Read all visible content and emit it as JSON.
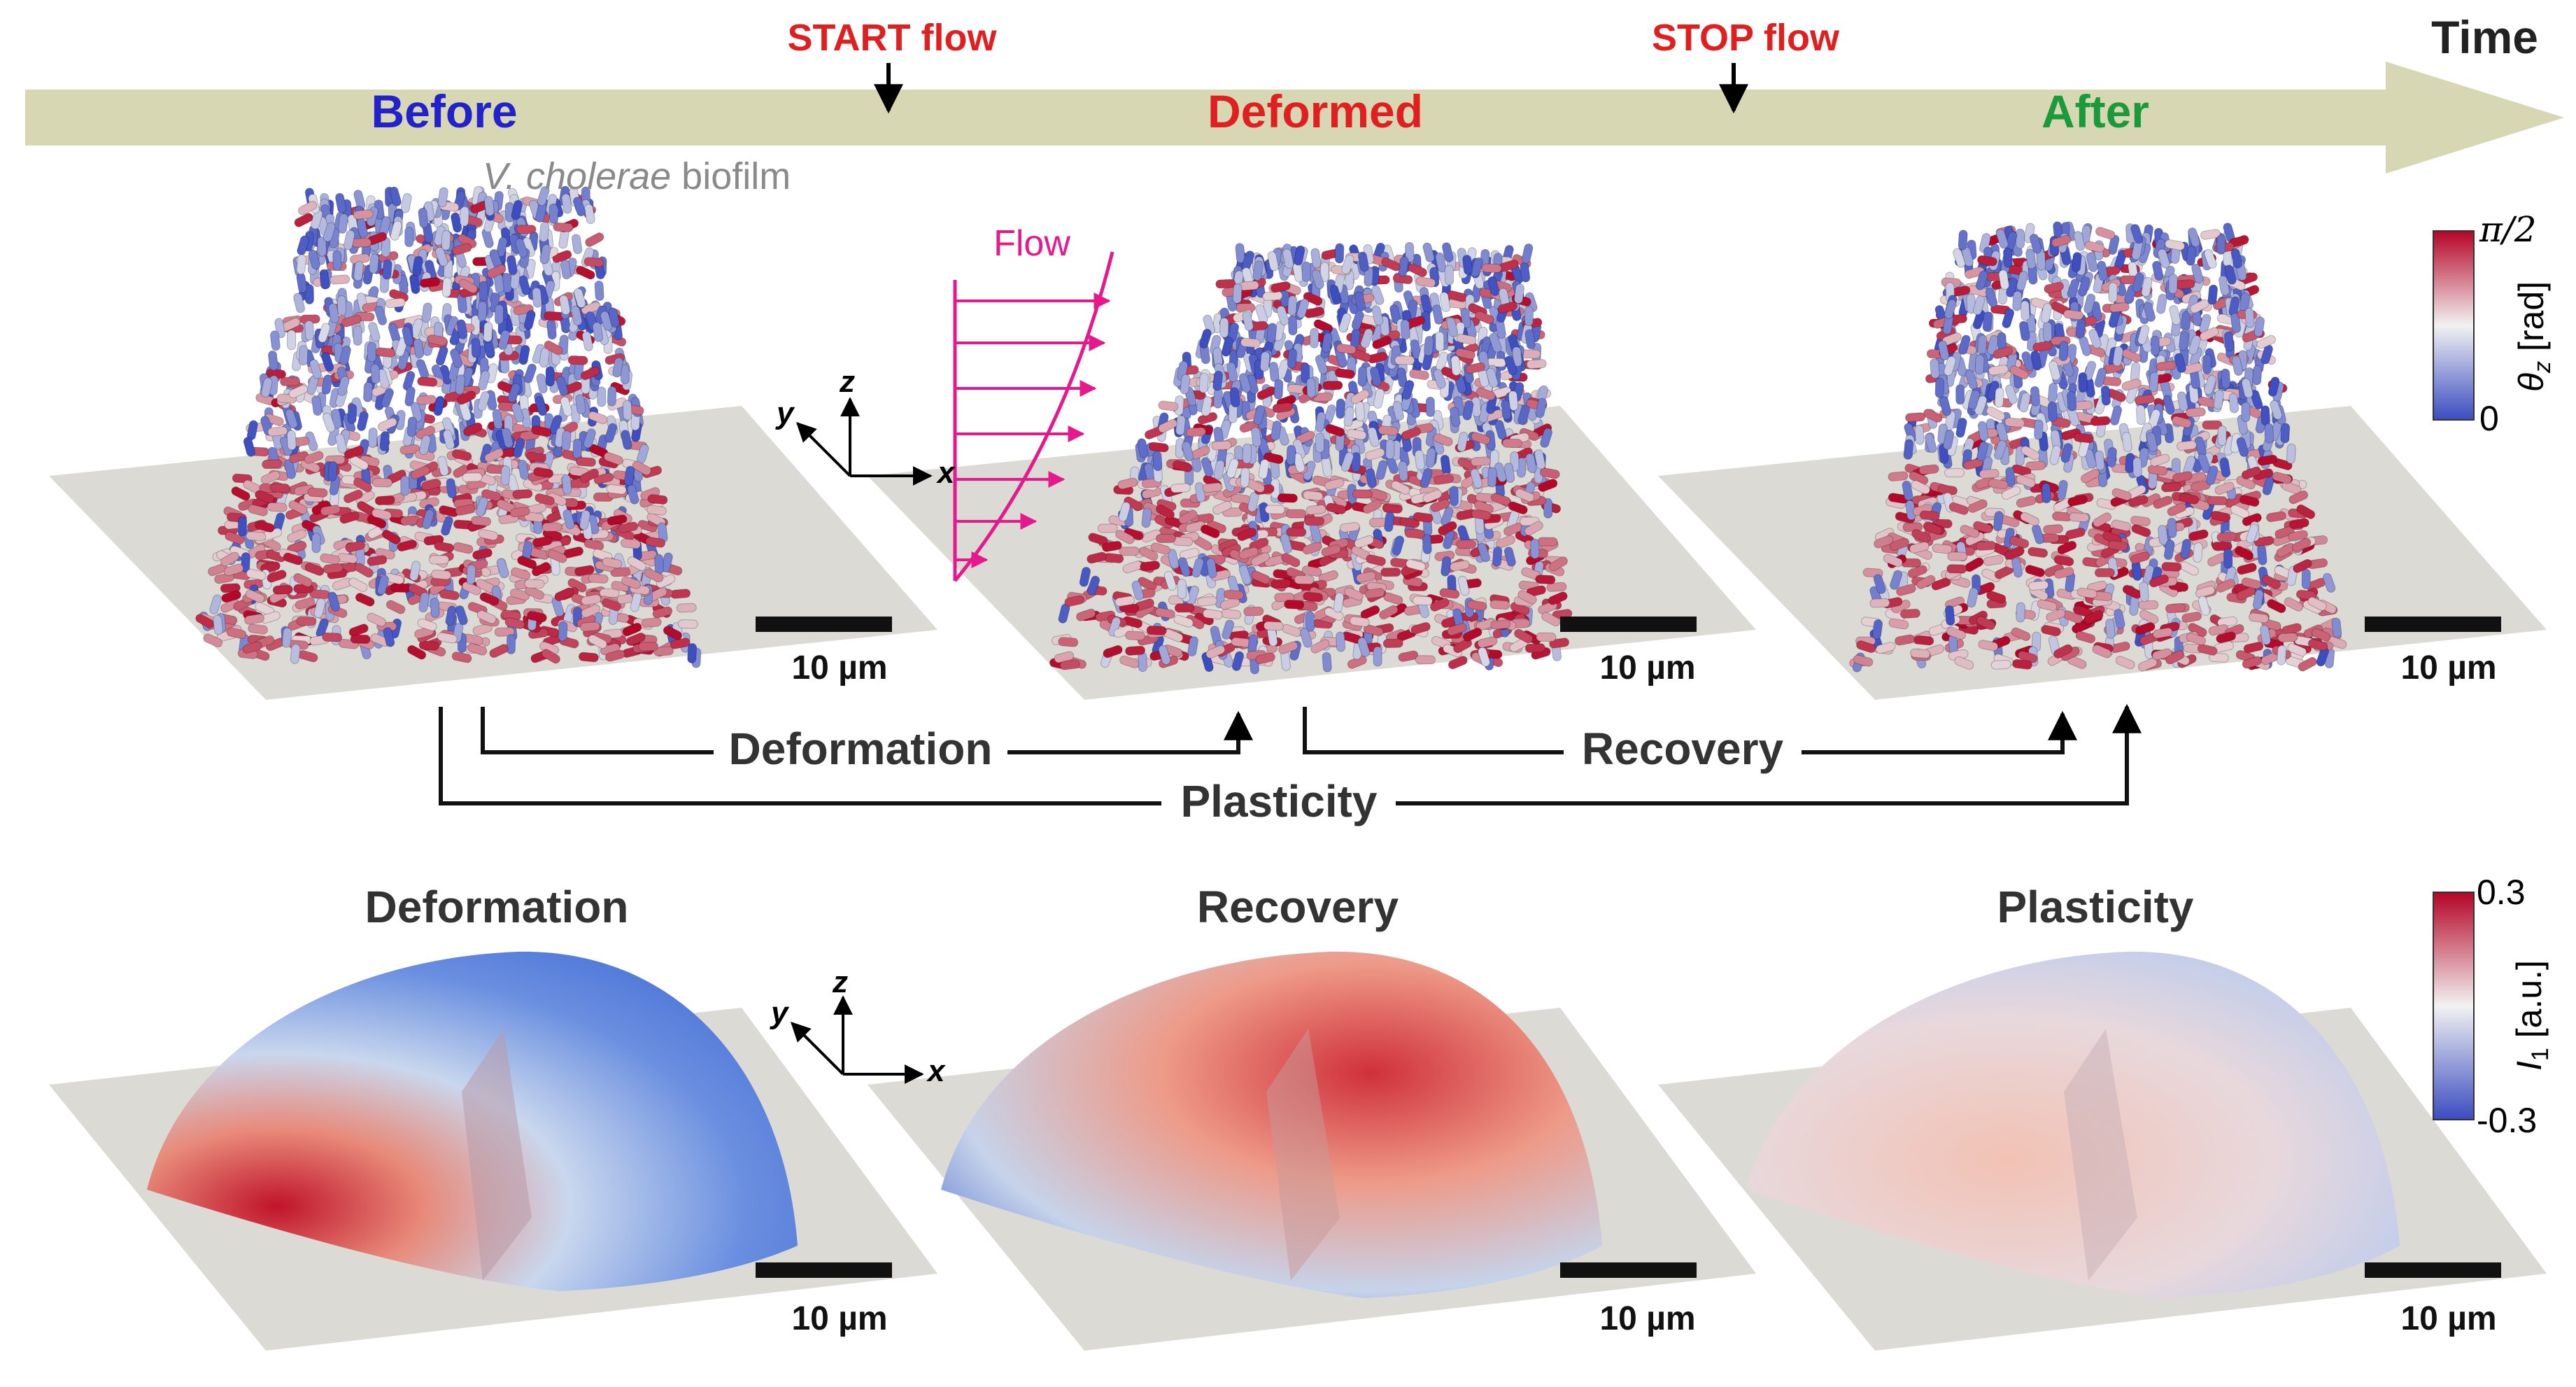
{
  "timeline": {
    "before": "Before",
    "deformed": "Deformed",
    "after": "After",
    "start_flow": "START flow",
    "stop_flow": "STOP flow",
    "time": "Time"
  },
  "colors": {
    "timeline_fill": "#d8d7b4",
    "before": "#2222cc",
    "deformed": "#e02020",
    "after": "#1a9a3a",
    "flow_annotation": "#e6198c",
    "cmap_low": "#3b4cc0",
    "cmap_mid": "#f2f2f2",
    "cmap_high": "#b40426",
    "substrate": "#dcdad4"
  },
  "biofilm_label": {
    "italic": "V. cholerae",
    "rest": " biofilm"
  },
  "flow_label": "Flow",
  "axes_labels": {
    "x": "x",
    "y": "y",
    "z": "z"
  },
  "colorbar_top": {
    "max": "π/2",
    "min": "0",
    "label_sym": "θ",
    "label_sub": "z",
    "label_unit": " [rad]"
  },
  "colorbar_bottom": {
    "max": "0.3",
    "min": "-0.3",
    "label_sym": "I",
    "label_sub": "1",
    "label_unit": " [a.u.]"
  },
  "scale_bar_label": "10 µm",
  "brackets": {
    "deformation": "Deformation",
    "recovery": "Recovery",
    "plasticity": "Plasticity"
  },
  "bottom_titles": [
    "Deformation",
    "Recovery",
    "Plasticity"
  ]
}
